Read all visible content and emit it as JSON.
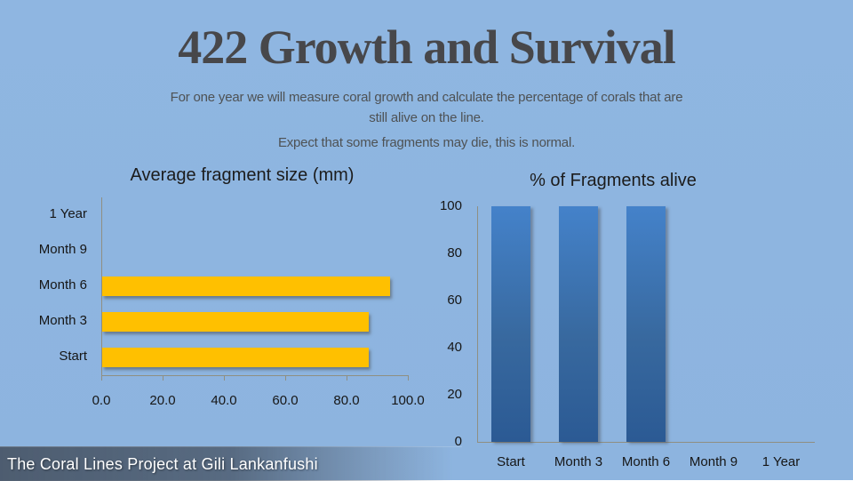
{
  "slide": {
    "title": "422 Growth and Survival",
    "subtitle_line1": "For one year we will measure coral growth and calculate the percentage of corals that are",
    "subtitle_line2": "still alive on the line.",
    "subtitle_line3": "Expect that some fragments may die, this is normal.",
    "footer": "The Coral Lines Project at Gili Lankanfushi"
  },
  "colors": {
    "background": "#8FB6E1",
    "title_text": "#47474A",
    "subtitle_text": "#4E5254",
    "bar_yellow": "#FFC000",
    "bar_blue_top": "#4482CA",
    "bar_blue_bottom": "#2B5A94",
    "axis_line": "#8F8F82",
    "footer_band": "#4A586A",
    "footer_text": "#FFFFFF"
  },
  "chart_data": [
    {
      "type": "bar",
      "orientation": "horizontal",
      "title": "Average fragment size (mm)",
      "categories": [
        "Start",
        "Month 3",
        "Month 6",
        "Month 9",
        "1 Year"
      ],
      "values": [
        87,
        87,
        94,
        0,
        0
      ],
      "xlim": [
        0,
        100
      ],
      "x_tick_labels": [
        "0.0",
        "20.0",
        "40.0",
        "60.0",
        "80.0",
        "100.0"
      ],
      "bar_color": "#FFC000",
      "legend": "none",
      "grid": "off"
    },
    {
      "type": "bar",
      "orientation": "vertical",
      "title": "% of Fragments alive",
      "categories": [
        "Start",
        "Month 3",
        "Month 6",
        "Month 9",
        "1 Year"
      ],
      "values": [
        100,
        100,
        100,
        0,
        0
      ],
      "ylim": [
        0,
        100
      ],
      "y_tick_labels": [
        "0",
        "20",
        "40",
        "60",
        "80",
        "100"
      ],
      "bar_color": "#3E7CC6",
      "legend": "none",
      "grid": "off"
    }
  ]
}
